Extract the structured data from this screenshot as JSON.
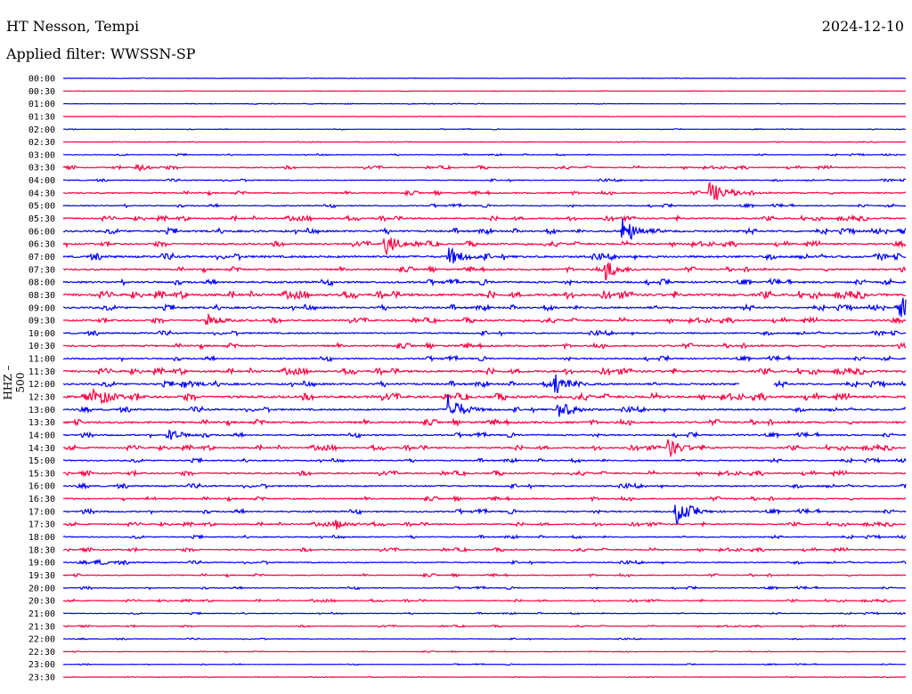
{
  "header": {
    "station": "HT Nesson, Tempi",
    "filter": "Applied filter: WWSSN-SP",
    "date": "2024-12-10"
  },
  "chart_data": {
    "type": "line",
    "title": "HT Nesson, Tempi",
    "subtitle": "Applied filter: WWSSN-SP",
    "ylabel": "HHZ – 500",
    "xlabel": "",
    "minutes_per_line": 30,
    "colors": [
      "#0000ff",
      "#ff0040"
    ],
    "row_labels": [
      "00:00",
      "00:30",
      "01:00",
      "01:30",
      "02:00",
      "02:30",
      "03:00",
      "03:30",
      "04:00",
      "04:30",
      "05:00",
      "05:30",
      "06:00",
      "06:30",
      "07:00",
      "07:30",
      "08:00",
      "08:30",
      "09:00",
      "09:30",
      "10:00",
      "10:30",
      "11:00",
      "11:30",
      "12:00",
      "12:30",
      "13:00",
      "13:30",
      "14:00",
      "14:30",
      "15:00",
      "15:30",
      "16:00",
      "16:30",
      "17:00",
      "17:30",
      "18:00",
      "18:30",
      "19:00",
      "19:30",
      "20:00",
      "20:30",
      "21:00",
      "21:30",
      "22:00",
      "22:30",
      "23:00",
      "23:30"
    ],
    "noise_level": [
      0.2,
      0.2,
      0.3,
      0.2,
      0.3,
      0.3,
      0.6,
      1.0,
      0.8,
      1.2,
      1.0,
      1.5,
      1.8,
      1.6,
      2.0,
      1.6,
      1.8,
      2.4,
      1.8,
      1.6,
      1.4,
      1.6,
      1.4,
      2.0,
      1.8,
      2.2,
      1.6,
      1.8,
      1.4,
      1.6,
      1.2,
      1.4,
      1.4,
      1.3,
      1.4,
      1.2,
      1.0,
      1.1,
      1.0,
      0.9,
      0.8,
      0.8,
      0.6,
      0.6,
      0.5,
      0.4,
      0.4,
      0.3
    ],
    "events": [
      {
        "row": 9,
        "minute": 23.0,
        "amp": 15
      },
      {
        "row": 12,
        "minute": 19.9,
        "amp": 18
      },
      {
        "row": 13,
        "minute": 11.4,
        "amp": 14
      },
      {
        "row": 14,
        "minute": 13.7,
        "amp": 12
      },
      {
        "row": 15,
        "minute": 19.3,
        "amp": 11
      },
      {
        "row": 18,
        "minute": 29.8,
        "amp": 10
      },
      {
        "row": 19,
        "minute": 5.1,
        "amp": 7
      },
      {
        "row": 7,
        "minute": 2.6,
        "amp": 4
      },
      {
        "row": 24,
        "minute": 17.5,
        "amp": 13
      },
      {
        "row": 24,
        "minute": 4.2,
        "amp": 5
      },
      {
        "row": 25,
        "minute": 1.1,
        "amp": 14
      },
      {
        "row": 26,
        "minute": 13.7,
        "amp": 18
      },
      {
        "row": 26,
        "minute": 17.6,
        "amp": 12
      },
      {
        "row": 28,
        "minute": 3.7,
        "amp": 8
      },
      {
        "row": 29,
        "minute": 21.5,
        "amp": 12
      },
      {
        "row": 34,
        "minute": 21.8,
        "amp": 14
      },
      {
        "row": 35,
        "minute": 9.7,
        "amp": 5
      },
      {
        "row": 38,
        "minute": 1.1,
        "amp": 4
      }
    ],
    "gaps": [
      {
        "row": 24,
        "from_minute": 24.1,
        "to_minute": 25.3
      }
    ]
  }
}
